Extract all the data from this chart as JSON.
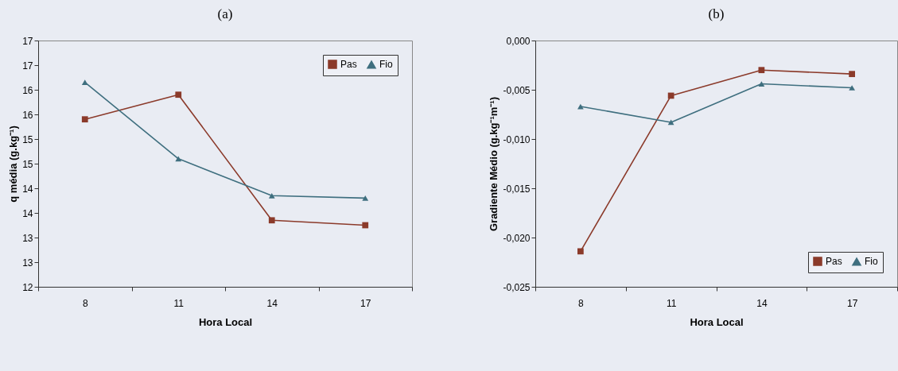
{
  "chart_data": [
    {
      "type": "line",
      "title": "(a)",
      "xlabel": "Hora Local",
      "ylabel": "q média (g.kg⁻¹)",
      "categories": [
        "8",
        "11",
        "14",
        "17"
      ],
      "series": [
        {
          "name": "Pas",
          "color": "#8b3a2a",
          "marker": "square",
          "values": [
            15.4,
            15.9,
            13.35,
            13.25
          ]
        },
        {
          "name": "Fio",
          "color": "#3f6f7f",
          "marker": "triangle",
          "values": [
            16.15,
            14.6,
            13.85,
            13.8
          ]
        }
      ],
      "ylim": [
        12,
        17
      ],
      "yticks": [
        12,
        {
          "value": 12.5,
          "label": "13"
        },
        13,
        {
          "value": 13.5,
          "label": "14"
        },
        14,
        {
          "value": 14.5,
          "label": "15"
        },
        15,
        {
          "value": 15.5,
          "label": "16"
        },
        16,
        {
          "value": 16.5,
          "label": "17"
        },
        17
      ],
      "grid": false,
      "legend": "top right"
    },
    {
      "type": "line",
      "title": "(b)",
      "xlabel": "Hora Local",
      "ylabel": "Gradiente Médio (g.kg⁻¹m⁻¹)",
      "categories": [
        "8",
        "11",
        "14",
        "17"
      ],
      "series": [
        {
          "name": "Pas",
          "color": "#8b3a2a",
          "marker": "square",
          "values": [
            -0.0214,
            -0.0056,
            -0.003,
            -0.0034
          ]
        },
        {
          "name": "Fio",
          "color": "#3f6f7f",
          "marker": "triangle",
          "values": [
            -0.0067,
            -0.0083,
            -0.0044,
            -0.0048
          ]
        }
      ],
      "ylim": [
        -0.025,
        0
      ],
      "yticks": [
        {
          "value": -0.025,
          "label": "-0,025"
        },
        {
          "value": -0.02,
          "label": "-0,020"
        },
        {
          "value": -0.015,
          "label": "-0,015"
        },
        {
          "value": -0.01,
          "label": "-0,010"
        },
        {
          "value": -0.005,
          "label": "-0,005"
        },
        {
          "value": 0,
          "label": "0,000"
        }
      ],
      "grid": false,
      "legend": "bottom right"
    }
  ]
}
